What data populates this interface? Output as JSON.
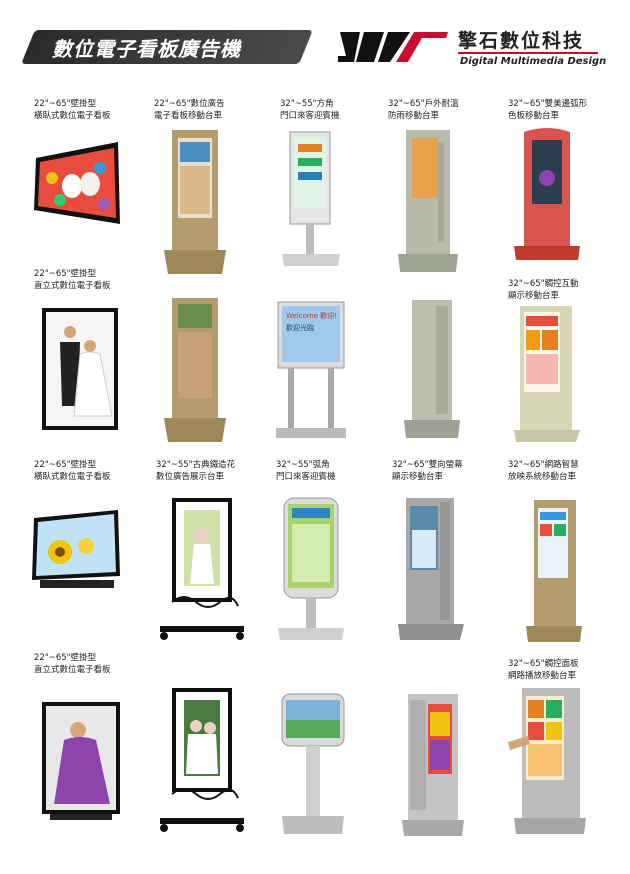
{
  "header": {
    "title": "數位電子看板廣告機",
    "brand_name": "擎石數位科技",
    "brand_tagline": "Digital Multimedia Design"
  },
  "colors": {
    "accent": "#c8102e",
    "dark": "#2b2b2b"
  },
  "captions": {
    "c1": [
      "22\"~65\"壁掛型",
      "橫臥式數位電子看板"
    ],
    "c2": [
      "22\"~65\"數位廣告",
      "電子看板移動台車"
    ],
    "c3": [
      "32\"~55\"方角",
      "門口來客迎賓機"
    ],
    "c4": [
      "32\"~65\"戶外耐溫",
      "防雨移動台車"
    ],
    "c5": [
      "32\"~65\"雙美邊弧形",
      "色板移動台車"
    ],
    "c6": [
      "22\"~65\"壁掛型",
      "直立式數位電子看板"
    ],
    "c7": [
      "32\"~65\"觸控互動",
      "顯示移動台車"
    ],
    "c8": [
      "22\"~65\"壁掛型",
      "橫臥式數位電子看板"
    ],
    "c9": [
      "32\"~55\"古典鐵造花",
      "數位廣告展示台車"
    ],
    "c10": [
      "32\"~55\"弧角",
      "門口來客迎賓機"
    ],
    "c11": [
      "32\"~65\"雙向螢幕",
      "顯示移動台車"
    ],
    "c12": [
      "32\"~65\"網路智慧",
      "放映系統移動台車"
    ],
    "c13": [
      "22\"~65\"壁掛型",
      "直立式數位電子看板"
    ],
    "c14": [
      "32\"~65\"觸控面板",
      "網路播放移動台車"
    ]
  },
  "screen_texts": {
    "welcome": "Welcome 歡迎!",
    "welcome_sub": "歡迎光臨"
  }
}
